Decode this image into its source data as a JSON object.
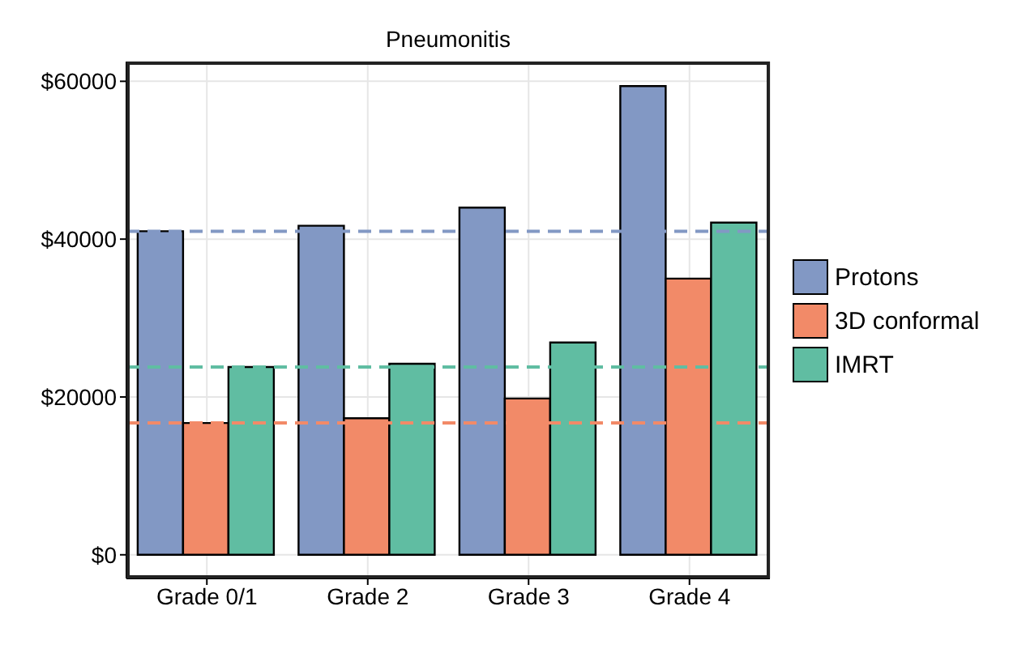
{
  "chart_data": {
    "type": "bar",
    "title": "Pneumonitis",
    "categories": [
      "Grade 0/1",
      "Grade 2",
      "Grade 3",
      "Grade 4"
    ],
    "series": [
      {
        "name": "Protons",
        "color": "#8298c4",
        "values": [
          41000,
          41700,
          44000,
          59400
        ]
      },
      {
        "name": "3D conformal",
        "color": "#f28a68",
        "values": [
          16700,
          17300,
          19800,
          35000
        ]
      },
      {
        "name": "IMRT",
        "color": "#60bda2",
        "values": [
          23800,
          24200,
          26900,
          42100
        ]
      }
    ],
    "ylim": [
      -3000,
      62500
    ],
    "yticks": [
      {
        "value": 0,
        "label": "$0"
      },
      {
        "value": 20000,
        "label": "$20000"
      },
      {
        "value": 40000,
        "label": "$40000"
      },
      {
        "value": 60000,
        "label": "$60000"
      }
    ],
    "ref_lines": [
      {
        "axis": "y",
        "value": 41000,
        "color": "#8298c4",
        "line_style": "dashed"
      },
      {
        "axis": "y",
        "value": 16700,
        "color": "#f28a68",
        "line_style": "dashed"
      },
      {
        "axis": "y",
        "value": 23800,
        "color": "#60bda2",
        "line_style": "dashed"
      }
    ],
    "grid": true,
    "legend": "right"
  }
}
